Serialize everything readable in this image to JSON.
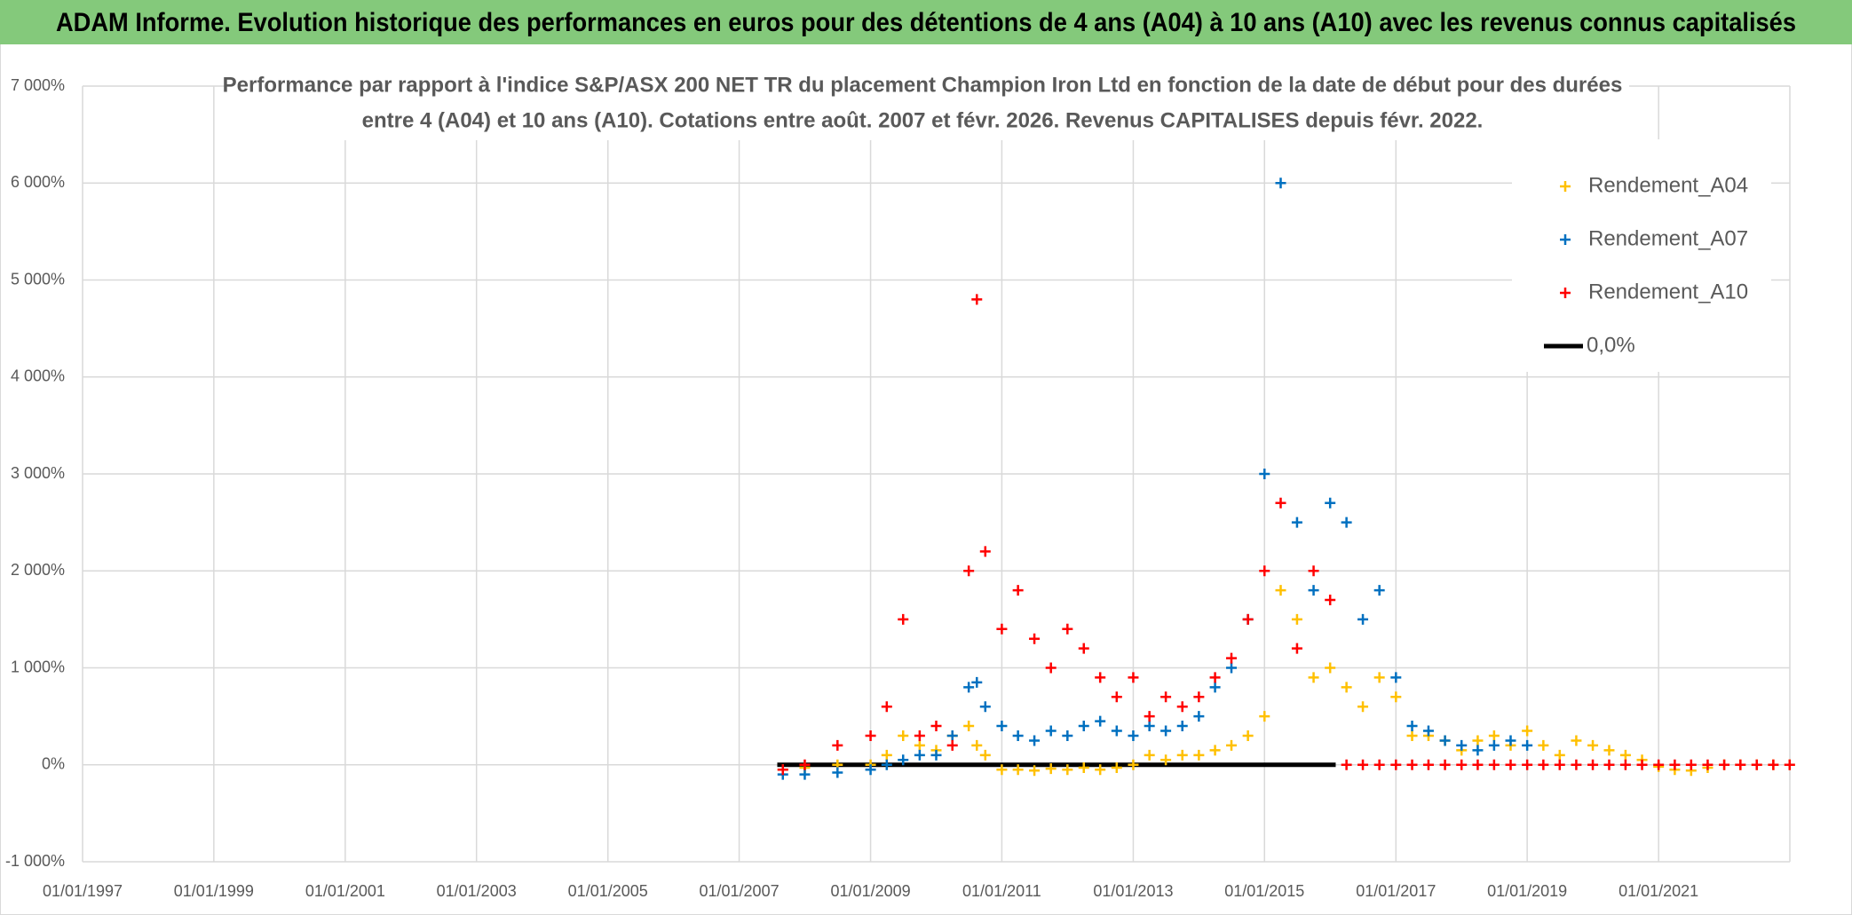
{
  "chart_data": {
    "type": "scatter",
    "title": "ADAM Informe. Evolution historique des performances en euros pour des détentions de 4 ans (A04) à 10 ans (A10) avec les revenus connus capitalisés",
    "subtitle_lines": [
      "Performance par rapport à l'indice S&P/ASX 200 NET TR  du placement Champion Iron Ltd en fonction de la date de début pour des durées",
      "entre 4 (A04) et 10 ans (A10). Cotations entre août. 2007 et févr. 2026. Revenus CAPITALISES depuis févr. 2022."
    ],
    "x": [
      "2007-09-01",
      "2008-01-01",
      "2008-07-01",
      "2009-01-01",
      "2009-04-01",
      "2009-07-01",
      "2009-10-01",
      "2010-01-01",
      "2010-04-01",
      "2010-07-01",
      "2010-08-15",
      "2010-10-01",
      "2011-01-01",
      "2011-04-01",
      "2011-07-01",
      "2011-10-01",
      "2012-01-01",
      "2012-04-01",
      "2012-07-01",
      "2012-10-01",
      "2013-01-01",
      "2013-04-01",
      "2013-07-01",
      "2013-10-01",
      "2014-01-01",
      "2014-04-01",
      "2014-07-01",
      "2014-10-01",
      "2015-01-01",
      "2015-04-01",
      "2015-07-01",
      "2015-10-01",
      "2016-01-01",
      "2016-04-01",
      "2016-07-01",
      "2016-10-01",
      "2017-01-01",
      "2017-04-01",
      "2017-07-01",
      "2017-10-01",
      "2018-01-01",
      "2018-04-01",
      "2018-07-01",
      "2018-10-01",
      "2019-01-01",
      "2019-04-01",
      "2019-07-01",
      "2019-10-01",
      "2020-01-01",
      "2020-04-01",
      "2020-07-01",
      "2020-10-01",
      "2021-01-01",
      "2021-04-01",
      "2021-07-01",
      "2021-10-01",
      "2022-01-01",
      "2022-04-01",
      "2022-07-01",
      "2022-10-01",
      "2022-12-31"
    ],
    "series": [
      {
        "name": "Rendement_A04",
        "color": "#ffc000",
        "values": [
          -50,
          -30,
          0,
          0,
          100,
          300,
          200,
          150,
          300,
          400,
          200,
          100,
          -50,
          -50,
          -60,
          -40,
          -50,
          -30,
          -50,
          -30,
          0,
          100,
          50,
          100,
          100,
          150,
          200,
          300,
          500,
          1800,
          1500,
          900,
          1000,
          800,
          600,
          900,
          700,
          300,
          300,
          250,
          150,
          250,
          300,
          200,
          350,
          200,
          100,
          250,
          200,
          150,
          100,
          50,
          -20,
          -50,
          -60,
          -30,
          0,
          0,
          0,
          0,
          0
        ]
      },
      {
        "name": "Rendement_A07",
        "color": "#0070c0",
        "values": [
          -100,
          -100,
          -80,
          -50,
          0,
          50,
          100,
          100,
          300,
          800,
          850,
          600,
          400,
          300,
          250,
          350,
          300,
          400,
          450,
          350,
          300,
          400,
          350,
          400,
          500,
          800,
          1000,
          1500,
          3000,
          6000,
          2500,
          1800,
          2700,
          2500,
          1500,
          1800,
          900,
          400,
          350,
          250,
          200,
          150,
          200,
          250,
          200,
          null,
          null,
          null,
          null,
          null,
          null,
          null,
          null,
          null,
          null,
          null,
          null,
          null,
          null,
          null,
          null
        ]
      },
      {
        "name": "Rendement_A10",
        "color": "#ff0000",
        "values": [
          -50,
          0,
          200,
          300,
          600,
          1500,
          300,
          400,
          200,
          2000,
          4800,
          2200,
          1400,
          1800,
          1300,
          1000,
          1400,
          1200,
          900,
          700,
          900,
          500,
          700,
          600,
          700,
          900,
          1100,
          1500,
          2000,
          2700,
          1200,
          2000,
          1700,
          0,
          0,
          0,
          0,
          0,
          0,
          0,
          0,
          0,
          0,
          0,
          0,
          0,
          0,
          0,
          0,
          0,
          0,
          0,
          0,
          0,
          0,
          0,
          0,
          0,
          0,
          0,
          0
        ]
      }
    ],
    "reference_line": {
      "name": "0,0%",
      "color": "#000000",
      "x": [
        "2007-08-01",
        "2016-02-01"
      ],
      "values": [
        0,
        0
      ]
    },
    "xlim": [
      "1997-01-01",
      "2023-01-01"
    ],
    "xticks": [
      {
        "value": "1997-01-01",
        "label": "01/01/1997"
      },
      {
        "value": "1999-01-01",
        "label": "01/01/1999"
      },
      {
        "value": "2001-01-01",
        "label": "01/01/2001"
      },
      {
        "value": "2003-01-01",
        "label": "01/01/2003"
      },
      {
        "value": "2005-01-01",
        "label": "01/01/2005"
      },
      {
        "value": "2007-01-01",
        "label": "01/01/2007"
      },
      {
        "value": "2009-01-01",
        "label": "01/01/2009"
      },
      {
        "value": "2011-01-01",
        "label": "01/01/2011"
      },
      {
        "value": "2013-01-01",
        "label": "01/01/2013"
      },
      {
        "value": "2015-01-01",
        "label": "01/01/2015"
      },
      {
        "value": "2017-01-01",
        "label": "01/01/2017"
      },
      {
        "value": "2019-01-01",
        "label": "01/01/2019"
      },
      {
        "value": "2021-01-01",
        "label": "01/01/2021"
      }
    ],
    "ylim": [
      -1000,
      7000
    ],
    "yticks": [
      {
        "value": -1000,
        "label": "-1 000%"
      },
      {
        "value": 0,
        "label": "0%"
      },
      {
        "value": 1000,
        "label": "1 000%"
      },
      {
        "value": 2000,
        "label": "2 000%"
      },
      {
        "value": 3000,
        "label": "3 000%"
      },
      {
        "value": 4000,
        "label": "4 000%"
      },
      {
        "value": 5000,
        "label": "5 000%"
      },
      {
        "value": 6000,
        "label": "6 000%"
      },
      {
        "value": 7000,
        "label": "7 000%"
      }
    ],
    "grid": true,
    "legend": "upper right"
  }
}
